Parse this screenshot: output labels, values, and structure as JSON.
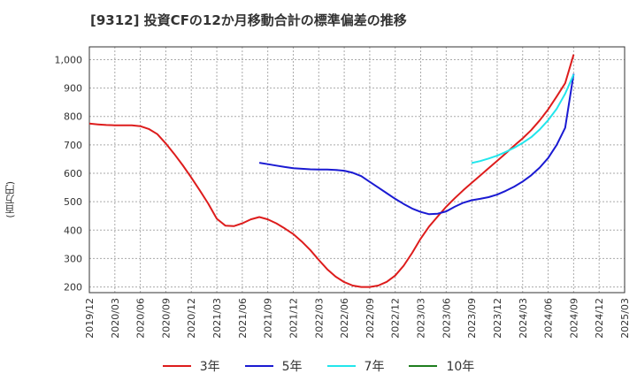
{
  "chart_data": {
    "type": "line",
    "title": "[9312]  投資CFの12か月移動合計の標準偏差の推移",
    "ylabel": "(百万円)",
    "xlabel": "",
    "ylim": [
      180,
      1045
    ],
    "yticks": [
      200,
      300,
      400,
      500,
      600,
      700,
      800,
      900,
      1000
    ],
    "ytick_labels": [
      "200",
      "300",
      "400",
      "500",
      "600",
      "700",
      "800",
      "900",
      "1,000"
    ],
    "xticks": [
      "2019/12",
      "2020/03",
      "2020/06",
      "2020/09",
      "2020/12",
      "2021/03",
      "2021/06",
      "2021/09",
      "2021/12",
      "2022/03",
      "2022/06",
      "2022/09",
      "2022/12",
      "2023/03",
      "2023/06",
      "2023/09",
      "2023/12",
      "2024/03",
      "2024/06",
      "2024/09",
      "2024/12",
      "2025/03"
    ],
    "grid": true,
    "legend_position": "bottom",
    "series": [
      {
        "name": "3年",
        "color": "#dd1c1c",
        "points": [
          [
            "2019/12",
            775
          ],
          [
            "2020/01",
            772
          ],
          [
            "2020/02",
            770
          ],
          [
            "2020/03",
            769
          ],
          [
            "2020/04",
            769
          ],
          [
            "2020/05",
            769
          ],
          [
            "2020/06",
            766
          ],
          [
            "2020/07",
            756
          ],
          [
            "2020/08",
            738
          ],
          [
            "2020/09",
            705
          ],
          [
            "2020/10",
            668
          ],
          [
            "2020/11",
            628
          ],
          [
            "2020/12",
            585
          ],
          [
            "2021/01",
            540
          ],
          [
            "2021/02",
            493
          ],
          [
            "2021/03",
            440
          ],
          [
            "2021/04",
            416
          ],
          [
            "2021/05",
            414
          ],
          [
            "2021/06",
            424
          ],
          [
            "2021/07",
            438
          ],
          [
            "2021/08",
            446
          ],
          [
            "2021/09",
            438
          ],
          [
            "2021/10",
            424
          ],
          [
            "2021/11",
            406
          ],
          [
            "2021/12",
            386
          ],
          [
            "2022/01",
            360
          ],
          [
            "2022/02",
            330
          ],
          [
            "2022/03",
            295
          ],
          [
            "2022/04",
            262
          ],
          [
            "2022/05",
            236
          ],
          [
            "2022/06",
            217
          ],
          [
            "2022/07",
            205
          ],
          [
            "2022/08",
            200
          ],
          [
            "2022/09",
            200
          ],
          [
            "2022/10",
            205
          ],
          [
            "2022/11",
            218
          ],
          [
            "2022/12",
            240
          ],
          [
            "2023/01",
            275
          ],
          [
            "2023/02",
            320
          ],
          [
            "2023/03",
            370
          ],
          [
            "2023/04",
            413
          ],
          [
            "2023/05",
            448
          ],
          [
            "2023/06",
            482
          ],
          [
            "2023/07",
            512
          ],
          [
            "2023/08",
            540
          ],
          [
            "2023/09",
            566
          ],
          [
            "2023/10",
            592
          ],
          [
            "2023/11",
            618
          ],
          [
            "2023/12",
            644
          ],
          [
            "2024/01",
            670
          ],
          [
            "2024/02",
            697
          ],
          [
            "2024/03",
            723
          ],
          [
            "2024/04",
            752
          ],
          [
            "2024/05",
            786
          ],
          [
            "2024/06",
            825
          ],
          [
            "2024/07",
            870
          ],
          [
            "2024/08",
            917
          ],
          [
            "2024/09",
            1018
          ]
        ]
      },
      {
        "name": "5年",
        "color": "#1a1ad2",
        "points": [
          [
            "2021/08",
            637
          ],
          [
            "2021/09",
            632
          ],
          [
            "2021/10",
            627
          ],
          [
            "2021/11",
            622
          ],
          [
            "2021/12",
            618
          ],
          [
            "2022/01",
            616
          ],
          [
            "2022/02",
            614
          ],
          [
            "2022/03",
            613
          ],
          [
            "2022/04",
            613
          ],
          [
            "2022/05",
            612
          ],
          [
            "2022/06",
            609
          ],
          [
            "2022/07",
            602
          ],
          [
            "2022/08",
            590
          ],
          [
            "2022/09",
            570
          ],
          [
            "2022/10",
            550
          ],
          [
            "2022/11",
            530
          ],
          [
            "2022/12",
            510
          ],
          [
            "2023/01",
            492
          ],
          [
            "2023/02",
            476
          ],
          [
            "2023/03",
            464
          ],
          [
            "2023/04",
            456
          ],
          [
            "2023/05",
            458
          ],
          [
            "2023/06",
            466
          ],
          [
            "2023/07",
            482
          ],
          [
            "2023/08",
            496
          ],
          [
            "2023/09",
            505
          ],
          [
            "2023/10",
            510
          ],
          [
            "2023/11",
            516
          ],
          [
            "2023/12",
            525
          ],
          [
            "2024/01",
            538
          ],
          [
            "2024/02",
            553
          ],
          [
            "2024/03",
            571
          ],
          [
            "2024/04",
            593
          ],
          [
            "2024/05",
            620
          ],
          [
            "2024/06",
            654
          ],
          [
            "2024/07",
            700
          ],
          [
            "2024/08",
            760
          ],
          [
            "2024/09",
            950
          ]
        ]
      },
      {
        "name": "7年",
        "color": "#22e6ec",
        "points": [
          [
            "2023/09",
            636
          ],
          [
            "2023/10",
            643
          ],
          [
            "2023/11",
            652
          ],
          [
            "2023/12",
            662
          ],
          [
            "2024/01",
            675
          ],
          [
            "2024/02",
            690
          ],
          [
            "2024/03",
            707
          ],
          [
            "2024/04",
            727
          ],
          [
            "2024/05",
            754
          ],
          [
            "2024/06",
            787
          ],
          [
            "2024/07",
            827
          ],
          [
            "2024/08",
            880
          ],
          [
            "2024/09",
            948
          ]
        ]
      },
      {
        "name": "10年",
        "color": "#1e7d1e",
        "points": []
      }
    ]
  }
}
